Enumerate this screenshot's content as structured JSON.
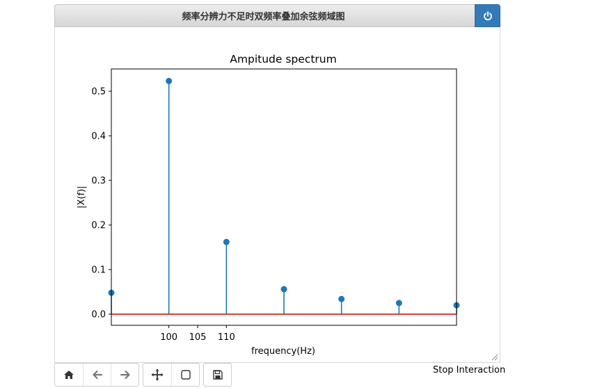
{
  "window": {
    "title": "频率分辨力不足时双频率叠加余弦频域图"
  },
  "toolbar": {
    "buttons": [
      "home-icon",
      "back-icon",
      "forward-icon",
      "pan-icon",
      "zoom-icon",
      "save-icon"
    ],
    "stop_label": "Stop Interaction"
  },
  "colors": {
    "stem": "#1f77b4",
    "baseline": "#d62728",
    "accent": "#337ab7"
  },
  "chart_data": {
    "type": "stem",
    "title": "Ampitude spectrum",
    "xlabel": "frequency(Hz)",
    "ylabel": "|X(f)|",
    "xlim": [
      90,
      150
    ],
    "ylim": [
      -0.025,
      0.55
    ],
    "x_ticks": [
      100,
      105,
      110
    ],
    "y_ticks": [
      0.0,
      0.1,
      0.2,
      0.3,
      0.4,
      0.5
    ],
    "y_tick_labels": [
      "0.0",
      "0.1",
      "0.2",
      "0.3",
      "0.4",
      "0.5"
    ],
    "x": [
      90,
      100,
      110,
      120,
      130,
      140,
      150
    ],
    "values": [
      0.048,
      0.523,
      0.162,
      0.056,
      0.034,
      0.025,
      0.02
    ],
    "baseline": 0
  }
}
